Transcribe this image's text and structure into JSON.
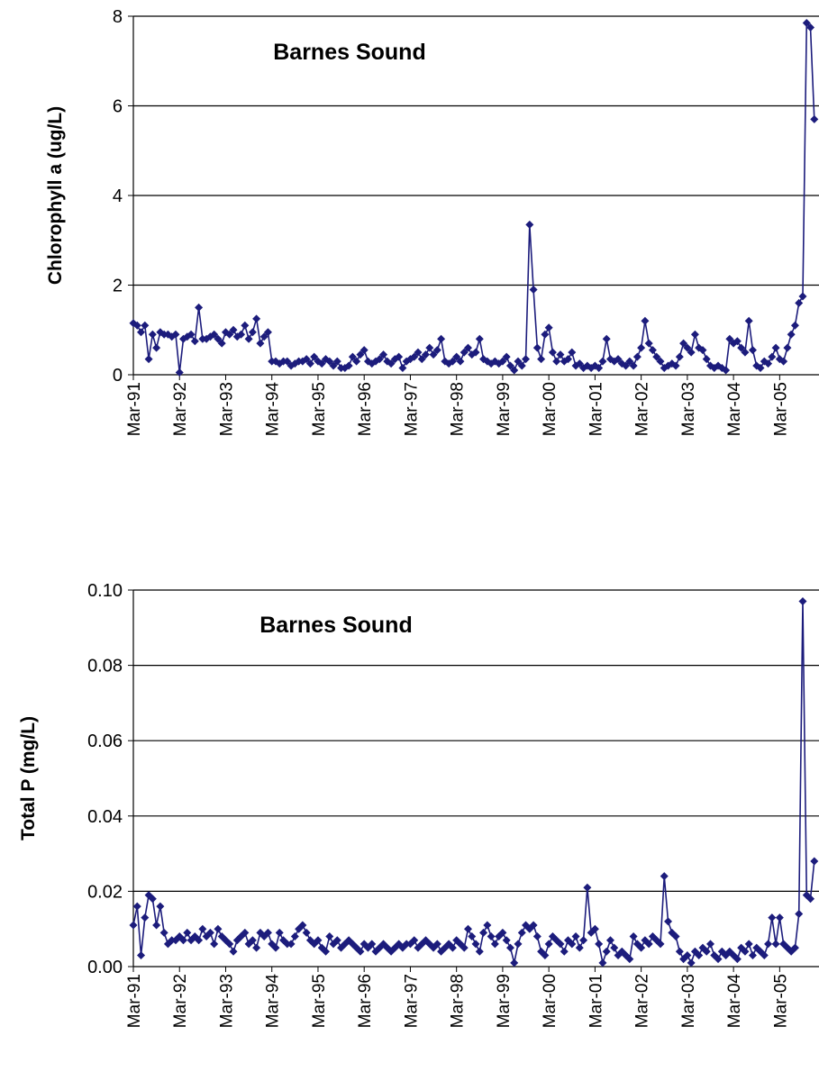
{
  "chart_data": [
    {
      "type": "line",
      "title": "Barnes Sound",
      "y_label": "Chlorophyll a (ug/L)",
      "color": "#1c1c7c",
      "grid": true,
      "ylim": [
        0,
        8
      ],
      "yticks": [
        0,
        2,
        4,
        6,
        8
      ],
      "categories": [
        "Mar-91",
        null,
        null,
        null,
        null,
        null,
        null,
        null,
        null,
        null,
        null,
        null,
        "Mar-92",
        null,
        null,
        null,
        null,
        null,
        null,
        null,
        null,
        null,
        null,
        null,
        "Mar-93",
        null,
        null,
        null,
        null,
        null,
        null,
        null,
        null,
        null,
        null,
        null,
        "Mar-94",
        null,
        null,
        null,
        null,
        null,
        null,
        null,
        null,
        null,
        null,
        null,
        "Mar-95",
        null,
        null,
        null,
        null,
        null,
        null,
        null,
        null,
        null,
        null,
        null,
        "Mar-96",
        null,
        null,
        null,
        null,
        null,
        null,
        null,
        null,
        null,
        null,
        null,
        "Mar-97",
        null,
        null,
        null,
        null,
        null,
        null,
        null,
        null,
        null,
        null,
        null,
        "Mar-98",
        null,
        null,
        null,
        null,
        null,
        null,
        null,
        null,
        null,
        null,
        null,
        "Mar-99",
        null,
        null,
        null,
        null,
        null,
        null,
        null,
        null,
        null,
        null,
        null,
        "Mar-00",
        null,
        null,
        null,
        null,
        null,
        null,
        null,
        null,
        null,
        null,
        null,
        "Mar-01",
        null,
        null,
        null,
        null,
        null,
        null,
        null,
        null,
        null,
        null,
        null,
        "Mar-02",
        null,
        null,
        null,
        null,
        null,
        null,
        null,
        null,
        null,
        null,
        null,
        "Mar-03",
        null,
        null,
        null,
        null,
        null,
        null,
        null,
        null,
        null,
        null,
        null,
        "Mar-04",
        null,
        null,
        null,
        null,
        null,
        null,
        null,
        null,
        null,
        null,
        null,
        "Mar-05",
        null,
        null,
        null,
        null,
        null,
        null,
        null,
        null,
        null
      ],
      "values": [
        1.15,
        1.1,
        0.95,
        1.1,
        0.35,
        0.9,
        0.6,
        0.95,
        0.9,
        0.9,
        0.85,
        0.9,
        0.05,
        0.8,
        0.85,
        0.9,
        0.75,
        1.5,
        0.8,
        0.8,
        0.85,
        0.9,
        0.8,
        0.7,
        0.95,
        0.9,
        1.0,
        0.85,
        0.9,
        1.1,
        0.8,
        0.95,
        1.25,
        0.7,
        0.85,
        0.95,
        0.3,
        0.3,
        0.25,
        0.3,
        0.3,
        0.2,
        0.25,
        0.3,
        0.3,
        0.35,
        0.25,
        0.4,
        0.3,
        0.25,
        0.35,
        0.3,
        0.2,
        0.3,
        0.15,
        0.15,
        0.2,
        0.4,
        0.3,
        0.45,
        0.55,
        0.3,
        0.25,
        0.3,
        0.35,
        0.45,
        0.3,
        0.25,
        0.35,
        0.4,
        0.15,
        0.3,
        0.35,
        0.4,
        0.5,
        0.35,
        0.45,
        0.6,
        0.45,
        0.55,
        0.8,
        0.3,
        0.25,
        0.3,
        0.4,
        0.3,
        0.5,
        0.6,
        0.45,
        0.5,
        0.8,
        0.35,
        0.3,
        0.25,
        0.3,
        0.25,
        0.3,
        0.4,
        0.2,
        0.1,
        0.3,
        0.2,
        0.35,
        3.35,
        1.9,
        0.6,
        0.35,
        0.9,
        1.05,
        0.5,
        0.3,
        0.45,
        0.3,
        0.35,
        0.5,
        0.2,
        0.25,
        0.15,
        0.2,
        0.15,
        0.2,
        0.15,
        0.3,
        0.8,
        0.35,
        0.3,
        0.35,
        0.25,
        0.2,
        0.3,
        0.2,
        0.4,
        0.6,
        1.2,
        0.7,
        0.55,
        0.4,
        0.3,
        0.15,
        0.2,
        0.25,
        0.2,
        0.4,
        0.7,
        0.6,
        0.5,
        0.9,
        0.6,
        0.55,
        0.35,
        0.2,
        0.15,
        0.2,
        0.15,
        0.1,
        0.8,
        0.7,
        0.75,
        0.6,
        0.5,
        1.2,
        0.55,
        0.2,
        0.15,
        0.3,
        0.25,
        0.4,
        0.6,
        0.35,
        0.3,
        0.6,
        0.9,
        1.1,
        1.6,
        1.75,
        7.85,
        7.75,
        5.7
      ]
    },
    {
      "type": "line",
      "title": "Barnes Sound",
      "y_label": "Total P (mg/L)",
      "color": "#1c1c7c",
      "grid": true,
      "ylim": [
        0,
        0.1
      ],
      "yticks": [
        {
          "value": 0,
          "label": "0.00"
        },
        {
          "value": 0.02,
          "label": "0.02"
        },
        {
          "value": 0.04,
          "label": "0.04"
        },
        {
          "value": 0.06,
          "label": "0.06"
        },
        {
          "value": 0.08,
          "label": "0.08"
        },
        {
          "value": 0.1,
          "label": "0.10"
        }
      ],
      "categories": [
        "Mar-91",
        null,
        null,
        null,
        null,
        null,
        null,
        null,
        null,
        null,
        null,
        null,
        "Mar-92",
        null,
        null,
        null,
        null,
        null,
        null,
        null,
        null,
        null,
        null,
        null,
        "Mar-93",
        null,
        null,
        null,
        null,
        null,
        null,
        null,
        null,
        null,
        null,
        null,
        "Mar-94",
        null,
        null,
        null,
        null,
        null,
        null,
        null,
        null,
        null,
        null,
        null,
        "Mar-95",
        null,
        null,
        null,
        null,
        null,
        null,
        null,
        null,
        null,
        null,
        null,
        "Mar-96",
        null,
        null,
        null,
        null,
        null,
        null,
        null,
        null,
        null,
        null,
        null,
        "Mar-97",
        null,
        null,
        null,
        null,
        null,
        null,
        null,
        null,
        null,
        null,
        null,
        "Mar-98",
        null,
        null,
        null,
        null,
        null,
        null,
        null,
        null,
        null,
        null,
        null,
        "Mar-99",
        null,
        null,
        null,
        null,
        null,
        null,
        null,
        null,
        null,
        null,
        null,
        "Mar-00",
        null,
        null,
        null,
        null,
        null,
        null,
        null,
        null,
        null,
        null,
        null,
        "Mar-01",
        null,
        null,
        null,
        null,
        null,
        null,
        null,
        null,
        null,
        null,
        null,
        "Mar-02",
        null,
        null,
        null,
        null,
        null,
        null,
        null,
        null,
        null,
        null,
        null,
        "Mar-03",
        null,
        null,
        null,
        null,
        null,
        null,
        null,
        null,
        null,
        null,
        null,
        "Mar-04",
        null,
        null,
        null,
        null,
        null,
        null,
        null,
        null,
        null,
        null,
        null,
        "Mar-05",
        null,
        null,
        null,
        null,
        null,
        null,
        null,
        null,
        null
      ],
      "values": [
        0.011,
        0.016,
        0.003,
        0.013,
        0.019,
        0.018,
        0.011,
        0.016,
        0.009,
        0.006,
        0.007,
        0.007,
        0.008,
        0.007,
        0.009,
        0.007,
        0.008,
        0.007,
        0.01,
        0.008,
        0.009,
        0.006,
        0.01,
        0.008,
        0.007,
        0.006,
        0.004,
        0.007,
        0.008,
        0.009,
        0.006,
        0.007,
        0.005,
        0.009,
        0.008,
        0.009,
        0.006,
        0.005,
        0.009,
        0.007,
        0.006,
        0.006,
        0.008,
        0.01,
        0.011,
        0.009,
        0.007,
        0.006,
        0.007,
        0.005,
        0.004,
        0.008,
        0.006,
        0.007,
        0.005,
        0.006,
        0.007,
        0.006,
        0.005,
        0.004,
        0.006,
        0.005,
        0.006,
        0.004,
        0.005,
        0.006,
        0.005,
        0.004,
        0.005,
        0.006,
        0.005,
        0.006,
        0.006,
        0.007,
        0.005,
        0.006,
        0.007,
        0.006,
        0.005,
        0.006,
        0.004,
        0.005,
        0.006,
        0.005,
        0.007,
        0.006,
        0.005,
        0.01,
        0.008,
        0.006,
        0.004,
        0.009,
        0.011,
        0.008,
        0.006,
        0.008,
        0.009,
        0.007,
        0.005,
        0.001,
        0.006,
        0.009,
        0.011,
        0.01,
        0.011,
        0.008,
        0.004,
        0.003,
        0.006,
        0.008,
        0.007,
        0.006,
        0.004,
        0.007,
        0.006,
        0.008,
        0.005,
        0.007,
        0.021,
        0.009,
        0.01,
        0.006,
        0.001,
        0.004,
        0.007,
        0.005,
        0.003,
        0.004,
        0.003,
        0.002,
        0.008,
        0.006,
        0.005,
        0.007,
        0.006,
        0.008,
        0.007,
        0.006,
        0.024,
        0.012,
        0.009,
        0.008,
        0.004,
        0.002,
        0.003,
        0.001,
        0.004,
        0.003,
        0.005,
        0.004,
        0.006,
        0.003,
        0.002,
        0.004,
        0.003,
        0.004,
        0.003,
        0.002,
        0.005,
        0.004,
        0.006,
        0.003,
        0.005,
        0.004,
        0.003,
        0.006,
        0.013,
        0.006,
        0.013,
        0.006,
        0.005,
        0.004,
        0.005,
        0.014,
        0.097,
        0.019,
        0.018,
        0.028
      ]
    }
  ]
}
